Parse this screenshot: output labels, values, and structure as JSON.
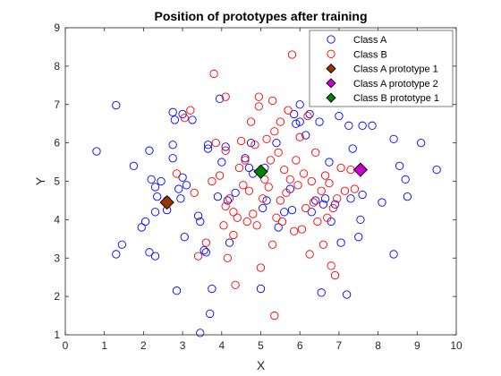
{
  "chart_data": {
    "type": "scatter",
    "title": "Position of prototypes after training",
    "xlabel": "X",
    "ylabel": "Y",
    "xlim": [
      0,
      10
    ],
    "ylim": [
      1,
      9
    ],
    "xticks": [
      0,
      1,
      2,
      3,
      4,
      5,
      6,
      7,
      8,
      9,
      10
    ],
    "yticks": [
      1,
      2,
      3,
      4,
      5,
      6,
      7,
      8,
      9
    ],
    "grid": false,
    "legend_position": "top-right",
    "series": [
      {
        "name": "Class A",
        "marker": "open-circle",
        "color": "#0000ff",
        "points": [
          [
            0.8,
            5.78
          ],
          [
            1.3,
            6.98
          ],
          [
            1.3,
            3.1
          ],
          [
            1.45,
            3.35
          ],
          [
            1.75,
            5.4
          ],
          [
            1.95,
            3.8
          ],
          [
            2.05,
            3.95
          ],
          [
            2.15,
            5.8
          ],
          [
            2.2,
            5.05
          ],
          [
            2.15,
            3.15
          ],
          [
            2.3,
            3.05
          ],
          [
            2.3,
            4.85
          ],
          [
            2.3,
            4.2
          ],
          [
            2.35,
            4.6
          ],
          [
            2.45,
            5.0
          ],
          [
            2.6,
            4.5
          ],
          [
            2.6,
            4.25
          ],
          [
            2.75,
            5.95
          ],
          [
            2.75,
            5.6
          ],
          [
            2.75,
            6.8
          ],
          [
            2.8,
            6.6
          ],
          [
            2.85,
            2.15
          ],
          [
            2.9,
            4.8
          ],
          [
            2.95,
            4.55
          ],
          [
            3.0,
            5.1
          ],
          [
            3.0,
            6.75
          ],
          [
            3.05,
            3.55
          ],
          [
            3.1,
            4.9
          ],
          [
            3.25,
            6.6
          ],
          [
            3.4,
            4.1
          ],
          [
            3.45,
            3.95
          ],
          [
            3.45,
            1.05
          ],
          [
            3.55,
            3.2
          ],
          [
            3.6,
            3.15
          ],
          [
            3.65,
            5.85
          ],
          [
            3.65,
            5.95
          ],
          [
            3.7,
            1.55
          ],
          [
            3.75,
            2.2
          ],
          [
            3.9,
            4.6
          ],
          [
            3.95,
            7.15
          ],
          [
            4.0,
            5.5
          ],
          [
            4.1,
            5.9
          ],
          [
            4.15,
            4.5
          ],
          [
            4.2,
            3.4
          ],
          [
            4.35,
            4.7
          ],
          [
            4.6,
            5.6
          ],
          [
            4.7,
            5.35
          ],
          [
            4.75,
            6.0
          ],
          [
            4.8,
            5.2
          ],
          [
            5.0,
            2.2
          ],
          [
            5.05,
            4.3
          ],
          [
            5.15,
            4.5
          ],
          [
            5.4,
            6.0
          ],
          [
            5.45,
            3.8
          ],
          [
            5.6,
            4.2
          ],
          [
            5.75,
            4.8
          ],
          [
            5.8,
            4.25
          ],
          [
            5.85,
            6.75
          ],
          [
            5.9,
            6.5
          ],
          [
            6.0,
            7.0
          ],
          [
            6.0,
            6.55
          ],
          [
            6.15,
            6.2
          ],
          [
            6.25,
            6.75
          ],
          [
            6.3,
            4.2
          ],
          [
            6.4,
            4.5
          ],
          [
            6.5,
            6.55
          ],
          [
            6.55,
            2.1
          ],
          [
            6.6,
            4.4
          ],
          [
            6.65,
            4.55
          ],
          [
            6.75,
            5.5
          ],
          [
            6.8,
            3.95
          ],
          [
            6.9,
            4.4
          ],
          [
            7.0,
            6.7
          ],
          [
            7.05,
            3.4
          ],
          [
            7.2,
            2.05
          ],
          [
            7.25,
            6.45
          ],
          [
            7.3,
            4.55
          ],
          [
            7.35,
            5.85
          ],
          [
            7.5,
            3.55
          ],
          [
            7.55,
            4.0
          ],
          [
            7.6,
            4.65
          ],
          [
            7.6,
            6.45
          ],
          [
            7.85,
            6.45
          ],
          [
            8.1,
            4.45
          ],
          [
            8.4,
            6.1
          ],
          [
            8.4,
            3.1
          ],
          [
            8.55,
            5.4
          ],
          [
            8.7,
            5.05
          ],
          [
            8.75,
            4.6
          ],
          [
            9.1,
            6.0
          ],
          [
            9.5,
            5.3
          ],
          [
            5.1,
            5.35
          ]
        ]
      },
      {
        "name": "Class B",
        "marker": "open-circle",
        "color": "#ff0000",
        "points": [
          [
            2.85,
            5.2
          ],
          [
            3.05,
            6.65
          ],
          [
            3.2,
            6.85
          ],
          [
            3.3,
            4.7
          ],
          [
            3.4,
            3.05
          ],
          [
            3.6,
            3.4
          ],
          [
            3.75,
            5.0
          ],
          [
            3.8,
            7.8
          ],
          [
            3.85,
            6.0
          ],
          [
            3.95,
            5.15
          ],
          [
            4.05,
            3.85
          ],
          [
            4.1,
            4.35
          ],
          [
            4.1,
            5.8
          ],
          [
            4.15,
            3.0
          ],
          [
            4.2,
            4.55
          ],
          [
            4.3,
            3.6
          ],
          [
            4.3,
            4.2
          ],
          [
            4.35,
            2.3
          ],
          [
            4.4,
            4.05
          ],
          [
            4.45,
            5.35
          ],
          [
            4.5,
            6.05
          ],
          [
            4.55,
            4.9
          ],
          [
            4.6,
            5.55
          ],
          [
            4.65,
            3.95
          ],
          [
            4.7,
            4.75
          ],
          [
            4.75,
            6.55
          ],
          [
            4.8,
            4.15
          ],
          [
            4.85,
            5.95
          ],
          [
            4.9,
            3.85
          ],
          [
            4.95,
            6.95
          ],
          [
            5.0,
            2.75
          ],
          [
            5.05,
            4.55
          ],
          [
            5.1,
            5.05
          ],
          [
            5.15,
            6.1
          ],
          [
            5.2,
            4.85
          ],
          [
            5.25,
            5.55
          ],
          [
            5.3,
            3.35
          ],
          [
            5.35,
            6.3
          ],
          [
            5.4,
            4.05
          ],
          [
            5.45,
            5.75
          ],
          [
            5.5,
            4.5
          ],
          [
            5.5,
            6.55
          ],
          [
            5.55,
            3.95
          ],
          [
            5.6,
            5.3
          ],
          [
            5.65,
            4.7
          ],
          [
            5.7,
            6.85
          ],
          [
            5.75,
            5.05
          ],
          [
            5.8,
            8.3
          ],
          [
            5.85,
            3.7
          ],
          [
            5.9,
            5.55
          ],
          [
            5.95,
            4.9
          ],
          [
            6.0,
            6.15
          ],
          [
            6.05,
            3.75
          ],
          [
            6.1,
            5.2
          ],
          [
            6.15,
            4.3
          ],
          [
            6.2,
            6.7
          ],
          [
            6.25,
            3.1
          ],
          [
            6.3,
            5.0
          ],
          [
            6.35,
            4.45
          ],
          [
            6.4,
            5.75
          ],
          [
            6.45,
            3.95
          ],
          [
            6.55,
            4.75
          ],
          [
            6.6,
            3.35
          ],
          [
            6.65,
            5.15
          ],
          [
            6.7,
            4.05
          ],
          [
            6.75,
            4.95
          ],
          [
            6.8,
            2.8
          ],
          [
            6.85,
            4.3
          ],
          [
            6.9,
            2.55
          ],
          [
            6.95,
            4.55
          ],
          [
            7.05,
            5.35
          ],
          [
            7.15,
            4.75
          ],
          [
            7.3,
            5.3
          ],
          [
            7.4,
            4.8
          ],
          [
            5.35,
            1.5
          ],
          [
            4.1,
            7.2
          ],
          [
            4.95,
            7.2
          ],
          [
            5.3,
            7.1
          ]
        ]
      },
      {
        "name": "Class A prototype 1",
        "marker": "filled-diamond",
        "color": "#993300",
        "points": [
          [
            2.6,
            4.45
          ]
        ]
      },
      {
        "name": "Class A prototype 2",
        "marker": "filled-diamond",
        "color": "#cc00cc",
        "points": [
          [
            7.55,
            5.3
          ]
        ]
      },
      {
        "name": "Class B prototype 1",
        "marker": "filled-diamond",
        "color": "#008000",
        "points": [
          [
            5.0,
            5.25
          ]
        ]
      }
    ]
  }
}
